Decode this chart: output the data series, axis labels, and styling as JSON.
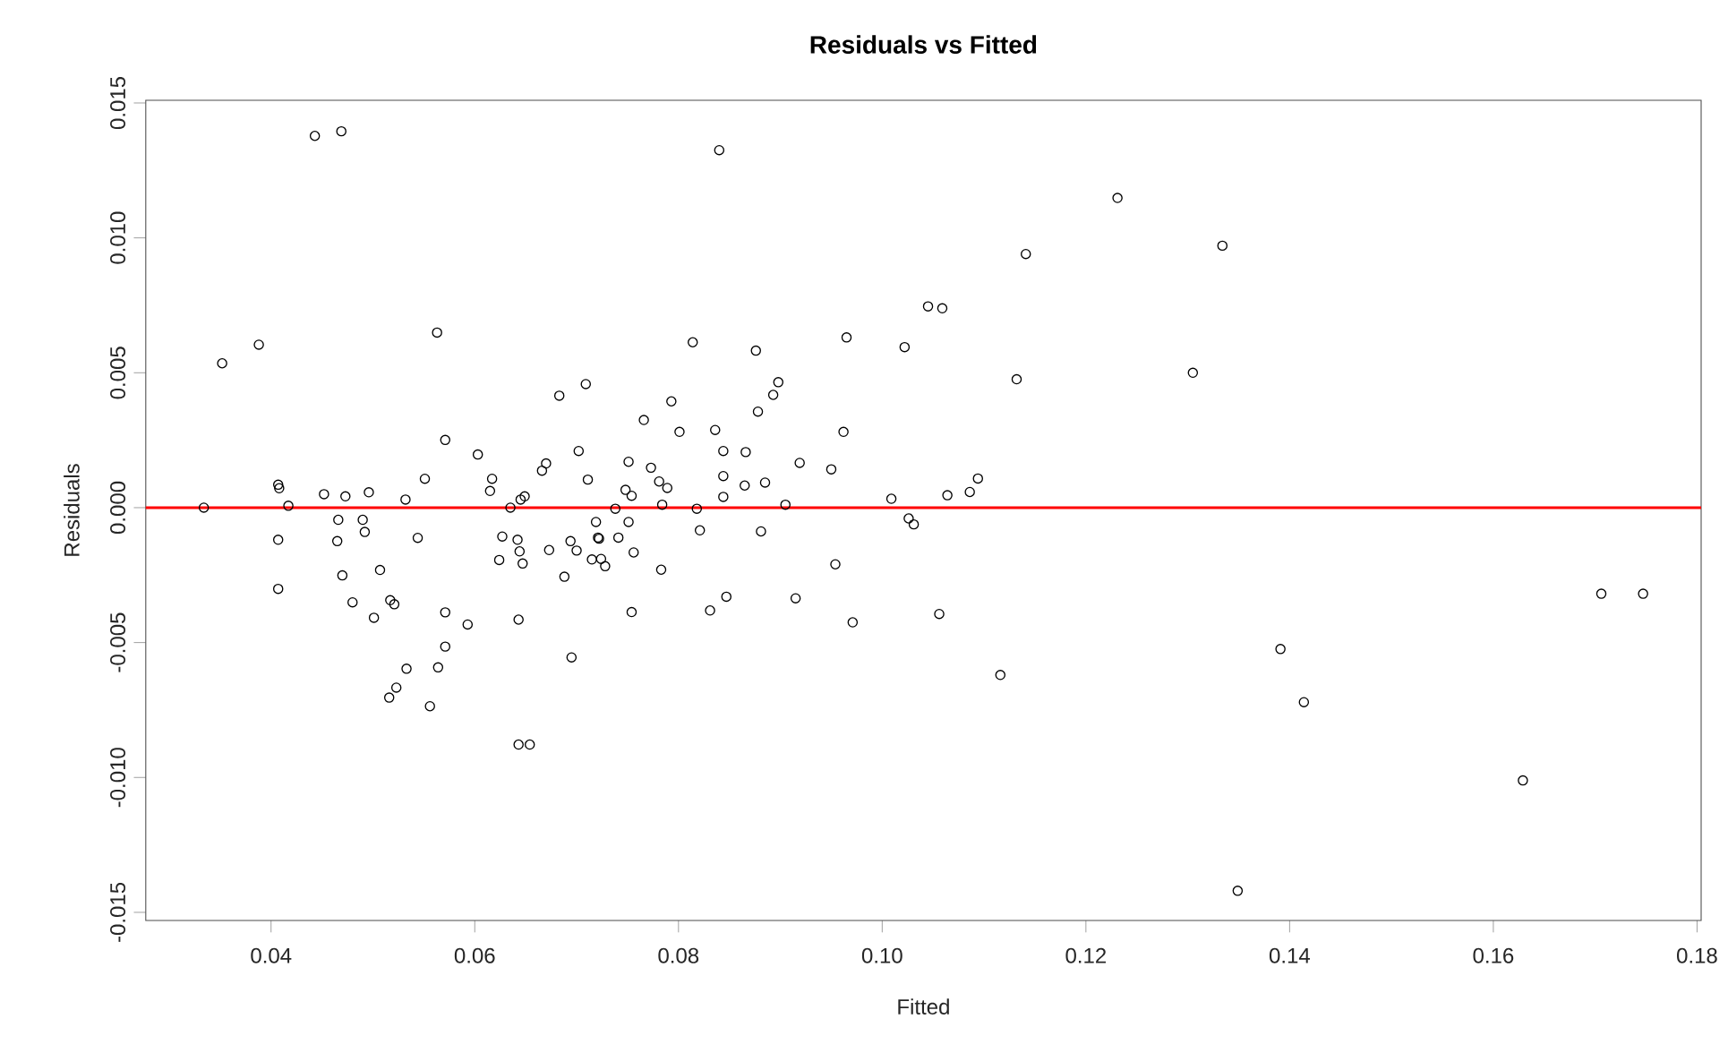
{
  "chart_data": {
    "type": "scatter",
    "title": "Residuals vs Fitted",
    "xlabel": "Fitted",
    "ylabel": "Residuals",
    "x": [
      0.0334,
      0.0352,
      0.0388,
      0.0443,
      0.0469,
      0.0407,
      0.0408,
      0.0417,
      0.0407,
      0.0407,
      0.0452,
      0.0473,
      0.0496,
      0.0466,
      0.049,
      0.0492,
      0.0465,
      0.047,
      0.0507,
      0.048,
      0.0501,
      0.0517,
      0.0521,
      0.0532,
      0.0544,
      0.0551,
      0.0563,
      0.0571,
      0.0571,
      0.0571,
      0.0593,
      0.0533,
      0.0523,
      0.0516,
      0.0564,
      0.0556,
      0.0603,
      0.0617,
      0.0615,
      0.0635,
      0.0645,
      0.0649,
      0.0627,
      0.0624,
      0.0642,
      0.0644,
      0.0647,
      0.0643,
      0.0643,
      0.0654,
      0.0666,
      0.067,
      0.0673,
      0.0683,
      0.0688,
      0.0695,
      0.0694,
      0.07,
      0.0702,
      0.0709,
      0.0711,
      0.0715,
      0.0719,
      0.0721,
      0.0722,
      0.0724,
      0.0728,
      0.0738,
      0.0741,
      0.0748,
      0.0751,
      0.0754,
      0.0751,
      0.0756,
      0.0754,
      0.0766,
      0.0773,
      0.0781,
      0.0789,
      0.0784,
      0.0783,
      0.0793,
      0.0801,
      0.0814,
      0.0818,
      0.0821,
      0.0831,
      0.0836,
      0.084,
      0.0844,
      0.0844,
      0.0844,
      0.0847,
      0.0865,
      0.0866,
      0.0876,
      0.0878,
      0.0885,
      0.0881,
      0.0893,
      0.0898,
      0.0905,
      0.0919,
      0.0915,
      0.095,
      0.0962,
      0.0965,
      0.0954,
      0.0971,
      0.1009,
      0.1022,
      0.1026,
      0.1031,
      0.1045,
      0.1059,
      0.1056,
      0.1064,
      0.1086,
      0.1094,
      0.1116,
      0.1132,
      0.1141,
      0.1231,
      0.1305,
      0.1334,
      0.1349,
      0.1391,
      0.1414,
      0.1629,
      0.1706,
      0.1747
    ],
    "series": [
      {
        "color": "#000000",
        "values": [
          0.0,
          0.00535,
          0.00604,
          0.01378,
          0.01395,
          0.00085,
          0.00072,
          7e-05,
          -0.00119,
          -0.00301,
          0.0005,
          0.00042,
          0.00057,
          -0.00045,
          -0.00045,
          -0.0009,
          -0.00124,
          -0.00251,
          -0.00231,
          -0.00351,
          -0.00408,
          -0.00343,
          -0.00358,
          0.0003,
          -0.00112,
          0.00107,
          0.00649,
          0.00251,
          -0.00388,
          -0.00515,
          -0.00433,
          -0.00597,
          -0.00667,
          -0.00704,
          -0.00592,
          -0.00736,
          0.00197,
          0.00107,
          0.00062,
          0.0,
          0.0003,
          0.00042,
          -0.00107,
          -0.00194,
          -0.00119,
          -0.00162,
          -0.00207,
          -0.00415,
          -0.00878,
          -0.00878,
          0.00137,
          0.00164,
          -0.00157,
          0.00415,
          -0.00256,
          -0.00555,
          -0.00124,
          -0.00159,
          0.0021,
          0.00458,
          0.00104,
          -0.00192,
          -0.00053,
          -0.00111,
          -0.00115,
          -0.0019,
          -0.00217,
          -4e-05,
          -0.00111,
          0.00066,
          0.0017,
          0.00044,
          -0.00053,
          -0.00166,
          -0.00387,
          0.00325,
          0.00148,
          0.00097,
          0.00073,
          0.00011,
          -0.0023,
          0.00394,
          0.00281,
          0.00613,
          -4e-05,
          -0.00084,
          -0.00381,
          0.00288,
          0.01325,
          0.0021,
          0.00117,
          0.0004,
          -0.0033,
          0.00082,
          0.00206,
          0.00582,
          0.00356,
          0.00093,
          -0.00088,
          0.00418,
          0.00465,
          0.00011,
          0.00166,
          -0.00336,
          0.00142,
          0.00281,
          0.00631,
          -0.0021,
          -0.00425,
          0.00033,
          0.00595,
          -0.0004,
          -0.00062,
          0.00746,
          0.00739,
          -0.00394,
          0.00046,
          0.00058,
          0.00108,
          -0.0062,
          0.00476,
          0.0094,
          0.01148,
          0.005,
          0.00971,
          -0.0142,
          -0.00524,
          -0.00721,
          -0.01011,
          -0.00319,
          -0.00319
        ]
      }
    ],
    "marker": "circle",
    "xlim": [
      0.0277,
      0.1804
    ],
    "ylim": [
      -0.0153,
      0.0151
    ],
    "xticks": [
      0.04,
      0.06,
      0.08,
      {
        "value": 0.1,
        "label": "0.10"
      },
      0.12,
      0.14,
      0.16,
      0.18
    ],
    "yticks": [
      -0.015,
      {
        "value": -0.01,
        "label": "-0.010"
      },
      -0.005,
      {
        "value": 0,
        "label": "0.000"
      },
      0.005,
      {
        "value": 0.01,
        "label": "0.010"
      },
      0.015
    ],
    "ref_lines": [
      {
        "axis": "y",
        "value": 0,
        "color": "#ff0000"
      }
    ]
  }
}
